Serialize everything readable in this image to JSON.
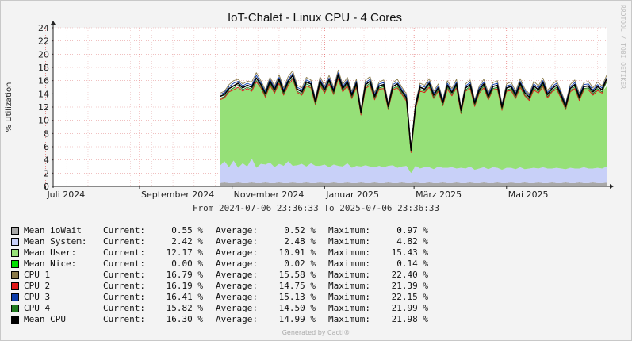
{
  "watermark": "RRDTOOL / TOBI OETIKER",
  "footer": "Generated by Cacti®",
  "range_text": "From 2024-07-06 23:36:33 To 2025-07-06 23:36:33",
  "legend_labels": {
    "current": "Current:",
    "average": "Average:",
    "maximum": "Maximum:"
  },
  "legend": [
    {
      "name": "Mean ioWait",
      "color": "#a8a8a8",
      "current": "0.55 %",
      "average": "0.52 %",
      "maximum": "0.97 %"
    },
    {
      "name": "Mean System:",
      "color": "#c8d0f8",
      "current": "2.42 %",
      "average": "2.48 %",
      "maximum": "4.82 %"
    },
    {
      "name": "Mean User:",
      "color": "#96e078",
      "current": "12.17 %",
      "average": "10.91 %",
      "maximum": "15.43 %"
    },
    {
      "name": "Mean Nice:",
      "color": "#00e000",
      "current": "0.00 %",
      "average": "0.02 %",
      "maximum": "0.14 %"
    },
    {
      "name": "CPU 1",
      "color": "#8a7a4a",
      "current": "16.79 %",
      "average": "15.58 %",
      "maximum": "22.40 %"
    },
    {
      "name": "CPU 2",
      "color": "#e01818",
      "current": "16.19 %",
      "average": "14.75 %",
      "maximum": "21.39 %"
    },
    {
      "name": "CPU 3",
      "color": "#0a3aa8",
      "current": "16.41 %",
      "average": "15.13 %",
      "maximum": "22.15 %"
    },
    {
      "name": "CPU 4",
      "color": "#207a20",
      "current": "15.82 %",
      "average": "14.50 %",
      "maximum": "21.99 %"
    },
    {
      "name": "Mean CPU",
      "color": "#000000",
      "current": "16.30 %",
      "average": "14.99 %",
      "maximum": "21.98 %"
    }
  ],
  "chart_data": {
    "type": "area",
    "title": "IoT-Chalet - Linux CPU - 4 Cores",
    "ylabel": "% Utilization",
    "ylim": [
      0,
      24
    ],
    "yticks": [
      0,
      2,
      4,
      6,
      8,
      10,
      12,
      14,
      16,
      18,
      20,
      22,
      24
    ],
    "x_range": [
      "2024-07-06",
      "2025-07-06"
    ],
    "x_tick_labels": [
      {
        "date": "2024-07-01",
        "label": "Juli 2024"
      },
      {
        "date": "2024-09-01",
        "label": "September 2024"
      },
      {
        "date": "2024-11-01",
        "label": "November 2024"
      },
      {
        "date": "2025-01-01",
        "label": "Januar 2025"
      },
      {
        "date": "2025-03-01",
        "label": "März 2025"
      },
      {
        "date": "2025-05-01",
        "label": "Mai 2025"
      }
    ],
    "grid": true,
    "data_start": "2024-10-24",
    "x": [
      "2024-10-24",
      "2024-10-27",
      "2024-10-30",
      "2024-11-02",
      "2024-11-05",
      "2024-11-08",
      "2024-11-11",
      "2024-11-14",
      "2024-11-17",
      "2024-11-20",
      "2024-11-23",
      "2024-11-26",
      "2024-11-29",
      "2024-12-02",
      "2024-12-05",
      "2024-12-08",
      "2024-12-11",
      "2024-12-14",
      "2024-12-17",
      "2024-12-20",
      "2024-12-23",
      "2024-12-26",
      "2024-12-29",
      "2025-01-01",
      "2025-01-04",
      "2025-01-07",
      "2025-01-10",
      "2025-01-13",
      "2025-01-16",
      "2025-01-19",
      "2025-01-22",
      "2025-01-25",
      "2025-01-28",
      "2025-01-31",
      "2025-02-03",
      "2025-02-06",
      "2025-02-09",
      "2025-02-12",
      "2025-02-15",
      "2025-02-18",
      "2025-02-21",
      "2025-02-24",
      "2025-02-27",
      "2025-03-02",
      "2025-03-05",
      "2025-03-08",
      "2025-03-11",
      "2025-03-14",
      "2025-03-17",
      "2025-03-20",
      "2025-03-23",
      "2025-03-26",
      "2025-03-29",
      "2025-04-01",
      "2025-04-04",
      "2025-04-07",
      "2025-04-10",
      "2025-04-13",
      "2025-04-16",
      "2025-04-19",
      "2025-04-22",
      "2025-04-25",
      "2025-04-28",
      "2025-05-01",
      "2025-05-04",
      "2025-05-07",
      "2025-05-10",
      "2025-05-13",
      "2025-05-16",
      "2025-05-19",
      "2025-05-22",
      "2025-05-25",
      "2025-05-28",
      "2025-05-31",
      "2025-06-03",
      "2025-06-06",
      "2025-06-09",
      "2025-06-12",
      "2025-06-15",
      "2025-06-18",
      "2025-06-21",
      "2025-06-24",
      "2025-06-27",
      "2025-06-30",
      "2025-07-03",
      "2025-07-06"
    ],
    "series": [
      {
        "name": "Mean ioWait",
        "values": [
          0.5,
          0.6,
          0.5,
          0.5,
          0.6,
          0.5,
          0.5,
          0.6,
          0.5,
          0.5,
          0.6,
          0.5,
          0.5,
          0.6,
          0.5,
          0.5,
          0.6,
          0.5,
          0.5,
          0.6,
          0.5,
          0.5,
          0.6,
          0.5,
          0.5,
          0.6,
          0.5,
          0.5,
          0.6,
          0.5,
          0.5,
          0.6,
          0.5,
          0.5,
          0.6,
          0.5,
          0.5,
          0.6,
          0.5,
          0.5,
          0.6,
          0.5,
          0.5,
          0.6,
          0.5,
          0.5,
          0.6,
          0.5,
          0.5,
          0.6,
          0.5,
          0.5,
          0.6,
          0.5,
          0.5,
          0.6,
          0.5,
          0.5,
          0.6,
          0.5,
          0.5,
          0.6,
          0.5,
          0.5,
          0.6,
          0.5,
          0.5,
          0.6,
          0.5,
          0.5,
          0.6,
          0.5,
          0.5,
          0.6,
          0.5,
          0.5,
          0.6,
          0.5,
          0.5,
          0.6,
          0.5,
          0.5,
          0.6,
          0.5,
          0.5,
          0.55
        ]
      },
      {
        "name": "Mean System",
        "values": [
          2.6,
          3.2,
          2.4,
          3.4,
          2.2,
          3.0,
          2.5,
          3.6,
          2.3,
          2.9,
          2.7,
          3.1,
          2.4,
          2.8,
          2.6,
          3.3,
          2.5,
          2.7,
          2.9,
          2.4,
          3.0,
          2.6,
          2.5,
          2.8,
          2.4,
          2.7,
          2.6,
          2.5,
          2.9,
          2.3,
          2.6,
          2.4,
          2.7,
          2.5,
          2.3,
          2.6,
          2.4,
          2.5,
          2.7,
          2.3,
          2.4,
          2.6,
          1.5,
          2.5,
          2.2,
          2.4,
          2.3,
          2.1,
          2.5,
          2.2,
          2.3,
          2.4,
          2.1,
          2.3,
          2.2,
          2.4,
          2.0,
          2.2,
          2.3,
          2.1,
          2.4,
          2.2,
          2.0,
          2.3,
          2.2,
          2.1,
          2.4,
          2.0,
          2.2,
          2.3,
          2.1,
          2.4,
          2.2,
          2.1,
          2.3,
          2.2,
          2.0,
          2.3,
          2.2,
          2.1,
          2.4,
          2.2,
          2.1,
          2.3,
          2.2,
          2.42
        ]
      },
      {
        "name": "Mean User",
        "values": [
          10.2,
          9.8,
          11.5,
          11.0,
          12.2,
          10.8,
          11.9,
          10.5,
          12.8,
          11.6,
          10.4,
          12.0,
          11.3,
          12.5,
          10.9,
          11.8,
          12.9,
          11.2,
          10.6,
          12.3,
          11.7,
          9.5,
          12.4,
          11.0,
          12.6,
          10.8,
          13.1,
          11.4,
          12.0,
          10.7,
          12.2,
          8.6,
          11.9,
          12.5,
          10.4,
          11.8,
          12.1,
          9.2,
          11.6,
          12.4,
          11.1,
          10.0,
          3.5,
          8.8,
          12.0,
          11.5,
          12.3,
          10.9,
          11.7,
          9.6,
          12.2,
          11.0,
          12.4,
          8.4,
          11.8,
          12.1,
          9.8,
          11.5,
          12.3,
          10.6,
          11.9,
          12.2,
          9.1,
          11.7,
          12.0,
          10.8,
          12.4,
          11.3,
          10.5,
          12.1,
          11.6,
          12.5,
          10.9,
          11.8,
          12.2,
          11.0,
          9.4,
          11.7,
          12.3,
          10.6,
          11.9,
          12.1,
          11.4,
          12.0,
          11.6,
          12.17
        ]
      },
      {
        "name": "Mean CPU",
        "values": [
          13.6,
          13.9,
          14.8,
          15.2,
          15.6,
          14.9,
          15.3,
          15.0,
          16.4,
          15.4,
          14.0,
          15.9,
          14.6,
          16.2,
          14.3,
          15.9,
          16.8,
          14.7,
          14.3,
          15.8,
          15.5,
          12.8,
          15.9,
          14.6,
          16.1,
          14.4,
          16.9,
          14.8,
          15.8,
          13.8,
          15.6,
          11.2,
          15.4,
          15.9,
          13.6,
          15.2,
          15.4,
          12.1,
          15.1,
          15.5,
          14.4,
          13.4,
          5.5,
          12.2,
          15.0,
          14.7,
          15.6,
          13.8,
          14.9,
          12.7,
          15.3,
          14.2,
          15.5,
          11.5,
          14.9,
          15.4,
          12.6,
          14.6,
          15.5,
          13.6,
          15.1,
          15.3,
          12.0,
          14.9,
          15.1,
          13.8,
          15.6,
          14.2,
          13.5,
          15.2,
          14.6,
          15.7,
          13.9,
          14.8,
          15.3,
          13.8,
          12.1,
          14.8,
          15.4,
          13.5,
          15.1,
          15.2,
          14.3,
          15.1,
          14.6,
          16.3
        ]
      },
      {
        "name": "CPU 1",
        "values": [
          14.1,
          14.4,
          15.4,
          16.0,
          16.2,
          15.5,
          15.9,
          15.8,
          17.2,
          16.0,
          14.6,
          16.5,
          15.2,
          16.9,
          14.9,
          16.6,
          17.5,
          15.3,
          14.9,
          16.5,
          16.1,
          13.3,
          16.6,
          15.2,
          16.8,
          15.0,
          17.6,
          15.4,
          16.5,
          14.4,
          16.2,
          11.7,
          16.1,
          16.6,
          14.2,
          15.8,
          16.1,
          12.6,
          15.7,
          16.2,
          15.0,
          14.0,
          5.9,
          12.7,
          15.6,
          15.3,
          16.3,
          14.4,
          15.5,
          13.2,
          16.0,
          14.8,
          16.2,
          12.0,
          15.5,
          16.1,
          13.1,
          15.2,
          16.2,
          14.2,
          15.7,
          16.0,
          12.5,
          15.5,
          15.8,
          14.4,
          16.3,
          14.8,
          14.0,
          15.9,
          15.2,
          16.4,
          14.5,
          15.4,
          16.0,
          14.4,
          12.6,
          15.4,
          16.1,
          14.1,
          15.7,
          15.9,
          14.9,
          15.8,
          15.2,
          16.79
        ]
      },
      {
        "name": "CPU 2",
        "values": [
          13.1,
          13.4,
          14.3,
          14.6,
          15.0,
          14.4,
          14.8,
          14.4,
          15.8,
          14.9,
          13.5,
          15.3,
          14.1,
          15.6,
          13.8,
          15.3,
          16.2,
          14.2,
          13.8,
          15.2,
          14.9,
          12.3,
          15.3,
          14.1,
          15.5,
          13.9,
          16.3,
          14.3,
          15.2,
          13.3,
          15.0,
          10.8,
          14.8,
          15.3,
          13.1,
          14.7,
          14.8,
          11.6,
          14.6,
          14.9,
          13.9,
          12.9,
          5.1,
          11.7,
          14.4,
          14.2,
          15.0,
          13.3,
          14.4,
          12.2,
          14.7,
          13.7,
          14.9,
          11.0,
          14.4,
          14.8,
          12.1,
          14.1,
          14.9,
          13.1,
          14.6,
          14.7,
          11.5,
          14.4,
          14.5,
          13.3,
          15.0,
          13.7,
          13.0,
          14.6,
          14.1,
          15.1,
          13.4,
          14.3,
          14.7,
          13.3,
          11.6,
          14.3,
          14.8,
          13.0,
          14.6,
          14.6,
          13.8,
          14.5,
          14.1,
          16.19
        ]
      },
      {
        "name": "CPU 3",
        "values": [
          13.9,
          14.2,
          15.1,
          15.6,
          15.9,
          15.2,
          15.6,
          15.3,
          16.8,
          15.7,
          14.3,
          16.2,
          14.9,
          16.5,
          14.6,
          16.2,
          17.1,
          15.0,
          14.6,
          16.1,
          15.8,
          13.1,
          16.2,
          14.9,
          16.4,
          14.7,
          17.2,
          15.1,
          16.1,
          14.1,
          15.9,
          11.5,
          15.7,
          16.2,
          13.9,
          15.5,
          15.7,
          12.4,
          15.4,
          15.8,
          14.7,
          13.7,
          5.7,
          12.5,
          15.3,
          15.0,
          15.9,
          14.1,
          15.2,
          13.0,
          15.6,
          14.5,
          15.8,
          11.8,
          15.2,
          15.7,
          12.9,
          14.9,
          15.8,
          13.9,
          15.4,
          15.6,
          12.3,
          15.2,
          15.4,
          14.1,
          15.9,
          14.5,
          13.8,
          15.5,
          14.9,
          16.0,
          14.2,
          15.1,
          15.6,
          14.1,
          12.4,
          15.1,
          15.7,
          13.8,
          15.4,
          15.5,
          14.6,
          15.4,
          14.9,
          16.41
        ]
      },
      {
        "name": "CPU 4",
        "values": [
          13.3,
          13.6,
          14.5,
          14.9,
          15.3,
          14.6,
          15.0,
          14.7,
          16.0,
          15.1,
          13.7,
          15.6,
          14.3,
          15.9,
          14.0,
          15.6,
          16.4,
          14.4,
          14.0,
          15.5,
          15.2,
          12.5,
          15.6,
          14.3,
          15.8,
          14.1,
          16.6,
          14.5,
          15.5,
          13.5,
          15.3,
          11.0,
          15.1,
          15.6,
          13.3,
          14.9,
          15.1,
          11.8,
          14.8,
          15.2,
          14.1,
          13.1,
          5.3,
          11.9,
          14.7,
          14.4,
          15.3,
          13.5,
          14.6,
          12.4,
          15.0,
          13.9,
          15.2,
          11.2,
          14.6,
          15.1,
          12.3,
          14.3,
          15.2,
          13.3,
          14.8,
          15.0,
          11.7,
          14.6,
          14.8,
          13.5,
          15.3,
          13.9,
          13.2,
          14.9,
          14.3,
          15.4,
          13.6,
          14.5,
          15.0,
          13.5,
          11.8,
          14.5,
          15.1,
          13.2,
          14.8,
          14.9,
          14.0,
          14.8,
          14.3,
          15.82
        ]
      }
    ]
  }
}
